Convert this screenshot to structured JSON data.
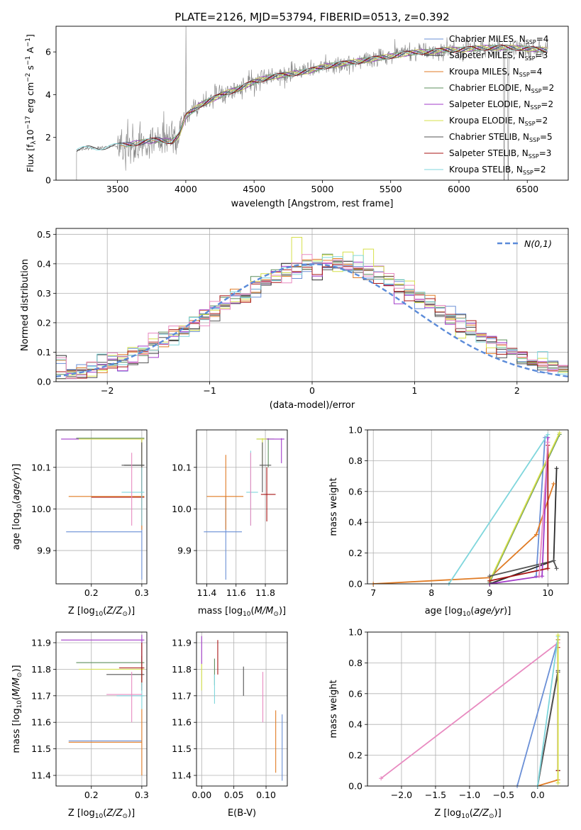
{
  "figure": {
    "title": "PLATE=2126, MJD=53794, FIBERID=0513, z=0.392"
  },
  "colors": {
    "Chabrier MILES": "#6a8fd6",
    "Salpeter MILES": "#2b2b2b",
    "Kroupa MILES": "#e07b24",
    "Chabrier ELODIE": "#5e8f5e",
    "Salpeter ELODIE": "#a23bc9",
    "Kroupa ELODIE": "#d6e04a",
    "Chabrier STELIB": "#555555",
    "Salpeter STELIB": "#a81515",
    "Kroupa STELIB": "#7fd6dc",
    "pink": "#e88ac0",
    "data": "#808080",
    "normal": "#5b8bd9"
  },
  "chart_data": [
    {
      "id": "spectrum",
      "type": "line",
      "xlabel": "wavelength [Angstrom, rest frame]",
      "ylabel": "Flux [f_λ 10^-17 erg cm^-2 s^-1 A^-1]",
      "xlim": [
        3050,
        6800
      ],
      "ylim": [
        0,
        7.2
      ],
      "xticks": [
        3500,
        4000,
        4500,
        5000,
        5500,
        6000,
        6500
      ],
      "yticks": [
        0,
        2,
        4,
        6
      ],
      "grid": false,
      "legend_position": "right",
      "legend": [
        {
          "name": "Chabrier MILES",
          "nssp": 4
        },
        {
          "name": "Salpeter MILES",
          "nssp": 3
        },
        {
          "name": "Kroupa MILES",
          "nssp": 4
        },
        {
          "name": "Chabrier ELODIE",
          "nssp": 2
        },
        {
          "name": "Salpeter ELODIE",
          "nssp": 2
        },
        {
          "name": "Kroupa ELODIE",
          "nssp": 2
        },
        {
          "name": "Chabrier STELIB",
          "nssp": 5
        },
        {
          "name": "Salpeter STELIB",
          "nssp": 3
        },
        {
          "name": "Kroupa STELIB",
          "nssp": 2
        }
      ],
      "continuum": {
        "x": [
          3200,
          3300,
          3400,
          3500,
          3600,
          3700,
          3800,
          3900,
          3950,
          4000,
          4100,
          4200,
          4300,
          4400,
          4500,
          4600,
          4700,
          4800,
          4900,
          5000,
          5100,
          5200,
          5300,
          5400,
          5500,
          5600,
          5700,
          5800,
          5900,
          6000,
          6200,
          6400,
          6600
        ],
        "y": [
          1.4,
          1.5,
          1.55,
          1.6,
          1.7,
          1.8,
          1.9,
          1.8,
          2.1,
          3.0,
          3.5,
          3.8,
          4.1,
          4.3,
          4.6,
          4.8,
          4.9,
          5.0,
          5.1,
          5.3,
          5.4,
          5.5,
          5.6,
          5.7,
          5.8,
          5.9,
          6.0,
          6.0,
          6.1,
          6.1,
          6.2,
          6.2,
          6.1
        ]
      }
    },
    {
      "id": "residuals",
      "type": "bar",
      "xlabel": "(data-model)/error",
      "ylabel": "Normed distribution",
      "xlim": [
        -2.5,
        2.5
      ],
      "ylim": [
        0,
        0.52
      ],
      "xticks": [
        -2,
        -1,
        0,
        1,
        2
      ],
      "yticks": [
        0.0,
        0.1,
        0.2,
        0.3,
        0.4,
        0.5
      ],
      "grid": true,
      "legend_position": "top-right",
      "legend_label": "N(0,1)",
      "bin_width": 0.1,
      "peak_bins": [
        {
          "x": -0.2,
          "value": 0.49
        },
        {
          "x": 0.1,
          "value": 0.43
        },
        {
          "x": 0.3,
          "value": 0.44
        },
        {
          "x": 0.5,
          "value": 0.45
        }
      ]
    },
    {
      "id": "age_vs_Z",
      "type": "scatter",
      "xlabel": "Z [log10(Z/Z⊙)]",
      "ylabel": "age [log10(age/yr)]",
      "xlim": [
        0.13,
        0.31
      ],
      "ylim": [
        9.82,
        10.19
      ],
      "xticks": [
        0.2,
        0.3
      ],
      "yticks": [
        9.9,
        10.0,
        10.1
      ],
      "grid": true,
      "points": [
        {
          "model": "Chabrier MILES",
          "x": 0.3,
          "xerr": [
            0.15,
            0.3
          ],
          "y": 9.945,
          "yerr": [
            9.83,
            10.03
          ]
        },
        {
          "model": "Salpeter MILES",
          "x": 0.3,
          "xerr": [
            0.265,
            0.305
          ],
          "y": 10.105,
          "yerr": [
            10.03,
            10.16
          ]
        },
        {
          "model": "Kroupa MILES",
          "x": 0.3,
          "xerr": [
            0.155,
            0.305
          ],
          "y": 10.03,
          "yerr": [
            9.95,
            10.1
          ]
        },
        {
          "model": "Chabrier ELODIE",
          "x": 0.3,
          "xerr": [
            0.17,
            0.305
          ],
          "y": 10.17,
          "yerr": [
            10.1,
            10.17
          ]
        },
        {
          "model": "Salpeter ELODIE",
          "x": 0.3,
          "xerr": [
            0.14,
            0.305
          ],
          "y": 10.168,
          "yerr": [
            10.1,
            10.17
          ]
        },
        {
          "model": "Kroupa ELODIE",
          "x": 0.3,
          "xerr": [
            0.175,
            0.305
          ],
          "y": 10.168,
          "yerr": [
            10.1,
            10.17
          ]
        },
        {
          "model": "Chabrier STELIB",
          "x": 0.3,
          "xerr": [
            0.26,
            0.305
          ],
          "y": 10.105,
          "yerr": [
            10.04,
            10.16
          ]
        },
        {
          "model": "Salpeter STELIB",
          "x": 0.3,
          "xerr": [
            0.2,
            0.305
          ],
          "y": 10.028,
          "yerr": [
            9.96,
            10.1
          ]
        },
        {
          "model": "Kroupa STELIB",
          "x": 0.3,
          "xerr": [
            0.26,
            0.305
          ],
          "y": 10.04,
          "yerr": [
            9.96,
            10.1
          ]
        },
        {
          "model": "pink",
          "x": 0.28,
          "xerr": [
            0.28,
            0.28
          ],
          "y": 10.03,
          "yerr": [
            9.96,
            10.135
          ]
        }
      ]
    },
    {
      "id": "age_vs_mass",
      "type": "scatter",
      "xlabel": "mass [log10(M/M⊙)]",
      "ylabel": "",
      "xlim": [
        11.33,
        11.95
      ],
      "ylim": [
        9.82,
        10.19
      ],
      "xticks": [
        11.4,
        11.6,
        11.8
      ],
      "yticks": [
        9.9,
        10.0,
        10.1
      ],
      "grid": true,
      "points": [
        {
          "model": "Chabrier MILES",
          "x": 11.53,
          "xerr": [
            11.38,
            11.64
          ],
          "y": 9.945,
          "yerr": [
            9.83,
            10.03
          ]
        },
        {
          "model": "Kroupa MILES",
          "x": 11.53,
          "xerr": [
            11.4,
            11.65
          ],
          "y": 10.03,
          "yerr": [
            9.95,
            10.13
          ]
        },
        {
          "model": "Chabrier ELODIE",
          "x": 11.82,
          "xerr": [
            11.74,
            11.86
          ],
          "y": 10.168,
          "yerr": [
            10.1,
            10.17
          ]
        },
        {
          "model": "Salpeter ELODIE",
          "x": 11.91,
          "xerr": [
            11.8,
            11.93
          ],
          "y": 10.168,
          "yerr": [
            10.11,
            10.17
          ]
        },
        {
          "model": "Kroupa ELODIE",
          "x": 11.78,
          "xerr": [
            11.74,
            11.81
          ],
          "y": 10.168,
          "yerr": [
            10.1,
            10.17
          ]
        },
        {
          "model": "Chabrier STELIB",
          "x": 11.78,
          "xerr": [
            11.76,
            11.84
          ],
          "y": 10.105,
          "yerr": [
            10.04,
            10.16
          ]
        },
        {
          "model": "Salpeter STELIB",
          "x": 11.81,
          "xerr": [
            11.77,
            11.87
          ],
          "y": 10.035,
          "yerr": [
            9.97,
            10.1
          ]
        },
        {
          "model": "Kroupa STELIB",
          "x": 11.7,
          "xerr": [
            11.67,
            11.75
          ],
          "y": 10.04,
          "yerr": [
            9.96,
            10.14
          ]
        },
        {
          "model": "pink",
          "x": 11.7,
          "xerr": [
            11.7,
            11.7
          ],
          "y": 10.03,
          "yerr": [
            9.96,
            10.135
          ]
        }
      ]
    },
    {
      "id": "massweight_vs_age",
      "type": "line",
      "xlabel": "age [log10(age/yr)]",
      "ylabel": "mass weight",
      "xlim": [
        6.9,
        10.35
      ],
      "ylim": [
        0,
        1.0
      ],
      "xticks": [
        7,
        8,
        9,
        10
      ],
      "yticks": [
        0.0,
        0.2,
        0.4,
        0.6,
        0.8,
        1.0
      ],
      "grid": true,
      "series": [
        {
          "model": "Chabrier MILES",
          "x": [
            9.8,
            9.95
          ],
          "y": [
            0.05,
            0.95
          ]
        },
        {
          "model": "Salpeter MILES",
          "x": [
            9.0,
            10.1,
            10.15
          ],
          "y": [
            0.0,
            0.15,
            0.75
          ]
        },
        {
          "model": "Kroupa MILES",
          "x": [
            7.0,
            9.0,
            9.8,
            10.1
          ],
          "y": [
            0.0,
            0.04,
            0.32,
            0.65
          ]
        },
        {
          "model": "Chabrier ELODIE",
          "x": [
            9.0,
            10.2
          ],
          "y": [
            0.01,
            0.97
          ]
        },
        {
          "model": "Salpeter ELODIE",
          "x": [
            9.0,
            9.9,
            10.0
          ],
          "y": [
            0.0,
            0.05,
            0.95
          ]
        },
        {
          "model": "Kroupa ELODIE",
          "x": [
            9.0,
            10.2
          ],
          "y": [
            0.02,
            0.98
          ]
        },
        {
          "model": "Chabrier STELIB",
          "x": [
            9.0,
            10.1,
            10.15
          ],
          "y": [
            0.05,
            0.15,
            0.1
          ]
        },
        {
          "model": "Salpeter STELIB",
          "x": [
            9.0,
            10.0,
            10.0
          ],
          "y": [
            0.02,
            0.1,
            0.9
          ]
        },
        {
          "model": "Kroupa STELIB",
          "x": [
            8.3,
            10.0
          ],
          "y": [
            0.0,
            0.97
          ]
        },
        {
          "model": "pink",
          "x": [
            9.85,
            10.0
          ],
          "y": [
            0.05,
            0.92
          ]
        }
      ]
    },
    {
      "id": "mass_vs_Z",
      "type": "scatter",
      "xlabel": "Z [log10(Z/Z⊙)]",
      "ylabel": "mass [log10(M/M⊙)]",
      "xlim": [
        0.13,
        0.31
      ],
      "ylim": [
        11.36,
        11.94
      ],
      "xticks": [
        0.2,
        0.3
      ],
      "yticks": [
        11.4,
        11.5,
        11.6,
        11.7,
        11.8,
        11.9
      ],
      "grid": true,
      "points": [
        {
          "model": "Chabrier MILES",
          "x": 0.3,
          "xerr": [
            0.155,
            0.3
          ],
          "y": 11.53,
          "yerr": [
            11.53,
            11.53
          ]
        },
        {
          "model": "Kroupa MILES",
          "x": 0.3,
          "xerr": [
            0.155,
            0.3
          ],
          "y": 11.525,
          "yerr": [
            11.4,
            11.65
          ]
        },
        {
          "model": "Chabrier ELODIE",
          "x": 0.3,
          "xerr": [
            0.17,
            0.305
          ],
          "y": 11.825,
          "yerr": [
            11.75,
            11.9
          ]
        },
        {
          "model": "Salpeter ELODIE",
          "x": 0.3,
          "xerr": [
            0.14,
            0.305
          ],
          "y": 11.91,
          "yerr": [
            11.82,
            11.93
          ]
        },
        {
          "model": "Kroupa ELODIE",
          "x": 0.3,
          "xerr": [
            0.175,
            0.305
          ],
          "y": 11.8,
          "yerr": [
            11.74,
            11.82
          ]
        },
        {
          "model": "Chabrier STELIB",
          "x": 0.3,
          "xerr": [
            0.23,
            0.305
          ],
          "y": 11.78,
          "yerr": [
            11.72,
            11.85
          ]
        },
        {
          "model": "Salpeter STELIB",
          "x": 0.3,
          "xerr": [
            0.255,
            0.305
          ],
          "y": 11.805,
          "yerr": [
            11.72,
            11.9
          ]
        },
        {
          "model": "Kroupa STELIB",
          "x": 0.3,
          "xerr": [
            0.25,
            0.305
          ],
          "y": 11.7,
          "yerr": [
            11.65,
            11.75
          ]
        },
        {
          "model": "pink",
          "x": 0.28,
          "xerr": [
            0.23,
            0.3
          ],
          "y": 11.705,
          "yerr": [
            11.6,
            11.79
          ]
        }
      ]
    },
    {
      "id": "mass_vs_ebv",
      "type": "scatter",
      "xlabel": "E(B-V)",
      "ylabel": "",
      "xlim": [
        -0.008,
        0.133
      ],
      "ylim": [
        11.36,
        11.94
      ],
      "xticks": [
        0.0,
        0.05,
        0.1
      ],
      "yticks": [
        11.4,
        11.5,
        11.6,
        11.7,
        11.8,
        11.9
      ],
      "grid": true,
      "points": [
        {
          "model": "Chabrier MILES",
          "x": 0.125,
          "xerr": [
            0.125,
            0.125
          ],
          "y": 11.53,
          "yerr": [
            11.38,
            11.63
          ]
        },
        {
          "model": "Kroupa MILES",
          "x": 0.115,
          "xerr": [
            0.115,
            0.115
          ],
          "y": 11.53,
          "yerr": [
            11.41,
            11.645
          ]
        },
        {
          "model": "Chabrier ELODIE",
          "x": 0.02,
          "xerr": [
            0.02,
            0.02
          ],
          "y": 11.8,
          "yerr": [
            11.74,
            11.84
          ]
        },
        {
          "model": "Salpeter ELODIE",
          "x": 0.0,
          "xerr": [
            0.0,
            0.0
          ],
          "y": 11.88,
          "yerr": [
            11.82,
            11.925
          ]
        },
        {
          "model": "Kroupa ELODIE",
          "x": 0.0,
          "xerr": [
            0.0,
            0.0
          ],
          "y": 11.78,
          "yerr": [
            11.72,
            11.82
          ]
        },
        {
          "model": "Salpeter STELIB",
          "x": 0.025,
          "xerr": [
            0.025,
            0.025
          ],
          "y": 11.86,
          "yerr": [
            11.78,
            11.91
          ]
        },
        {
          "model": "Kroupa STELIB",
          "x": 0.02,
          "xerr": [
            0.02,
            0.02
          ],
          "y": 11.72,
          "yerr": [
            11.67,
            11.78
          ]
        },
        {
          "model": "pink",
          "x": 0.095,
          "xerr": [
            0.095,
            0.095
          ],
          "y": 11.69,
          "yerr": [
            11.6,
            11.79
          ]
        },
        {
          "model": "Chabrier STELIB",
          "x": 0.065,
          "xerr": [
            0.065,
            0.065
          ],
          "y": 11.74,
          "yerr": [
            11.7,
            11.81
          ]
        }
      ]
    },
    {
      "id": "massweight_vs_Z",
      "type": "line",
      "xlabel": "Z [log10(Z/Z⊙)]",
      "ylabel": "mass weight",
      "xlim": [
        -2.5,
        0.45
      ],
      "ylim": [
        0,
        1.0
      ],
      "xticks": [
        -2.0,
        -1.5,
        -1.0,
        -0.5,
        0.0
      ],
      "yticks": [
        0.0,
        0.2,
        0.4,
        0.6,
        0.8,
        1.0
      ],
      "grid": true,
      "series": [
        {
          "model": "pink",
          "x": [
            -2.3,
            0.3
          ],
          "y": [
            0.05,
            0.93
          ]
        },
        {
          "model": "Chabrier MILES",
          "x": [
            -0.3,
            0.3
          ],
          "y": [
            0.0,
            0.95
          ]
        },
        {
          "model": "Kroupa MILES",
          "x": [
            0.0,
            0.3,
            0.3
          ],
          "y": [
            0.0,
            0.04,
            0.95
          ]
        },
        {
          "model": "Salpeter MILES",
          "x": [
            0.0,
            0.3,
            0.3
          ],
          "y": [
            0.0,
            0.75,
            0.1
          ]
        },
        {
          "model": "Chabrier STELIB",
          "x": [
            0.0,
            0.3,
            0.3
          ],
          "y": [
            0.0,
            0.74,
            0.1
          ]
        },
        {
          "model": "Salpeter STELIB",
          "x": [
            0.3,
            0.3
          ],
          "y": [
            0.1,
            0.9
          ]
        },
        {
          "model": "Kroupa STELIB",
          "x": [
            0.0,
            0.3
          ],
          "y": [
            0.0,
            0.97
          ]
        },
        {
          "model": "Kroupa ELODIE",
          "x": [
            0.3,
            0.3
          ],
          "y": [
            0.02,
            0.98
          ]
        }
      ]
    }
  ]
}
